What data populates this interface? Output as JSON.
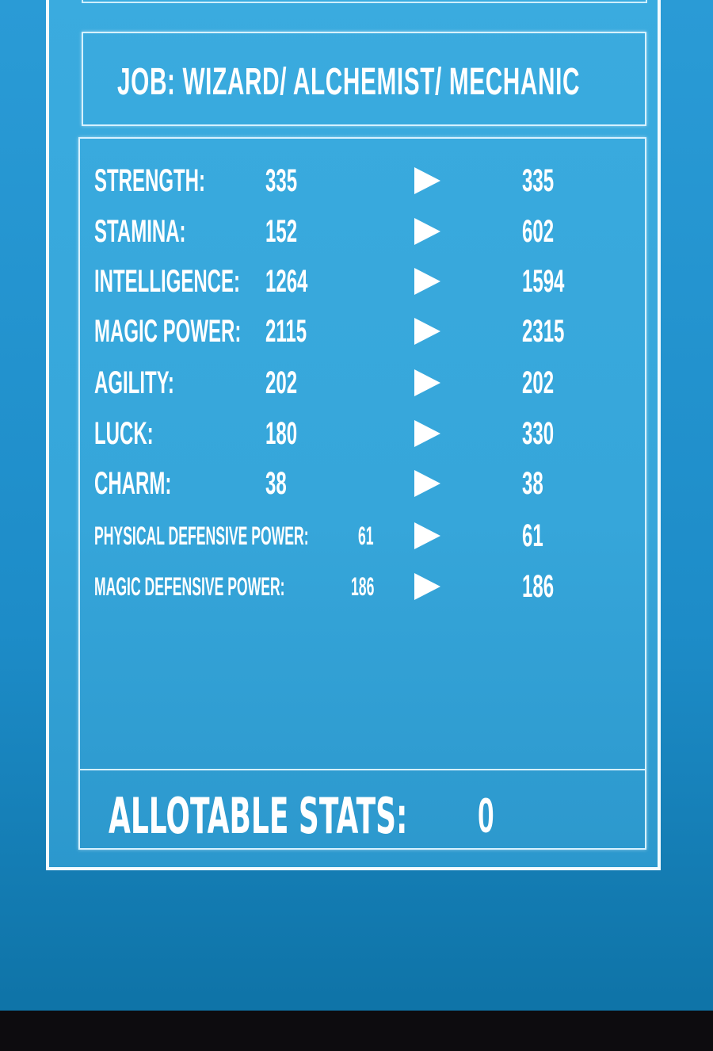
{
  "job": "JOB: WIZARD/ ALCHEMIST/ MECHANIC",
  "stats": [
    {
      "label": "STRENGTH:",
      "before": "335",
      "after": "335"
    },
    {
      "label": "STAMINA:",
      "before": "152",
      "after": "602"
    },
    {
      "label": "INTELLIGENCE:",
      "before": "1264",
      "after": "1594"
    },
    {
      "label": "MAGIC POWER:",
      "before": "2115",
      "after": "2315"
    },
    {
      "label": "AGILITY:",
      "before": "202",
      "after": "202"
    },
    {
      "label": "LUCK:",
      "before": "180",
      "after": "330"
    },
    {
      "label": "CHARM:",
      "before": "38",
      "after": "38"
    },
    {
      "label": "PHYSICAL DEFENSIVE POWER:",
      "before": "61",
      "after": "61"
    },
    {
      "label": "MAGIC DEFENSIVE POWER:",
      "before": "186",
      "after": "186"
    }
  ],
  "allotable": {
    "label": "ALLOTABLE STATS:",
    "value": "0"
  },
  "arrow_icon": "play-triangle-icon",
  "colors": {
    "panel": "#3aabdf",
    "border": "#f4fbff",
    "background": "#1d8cc8"
  }
}
